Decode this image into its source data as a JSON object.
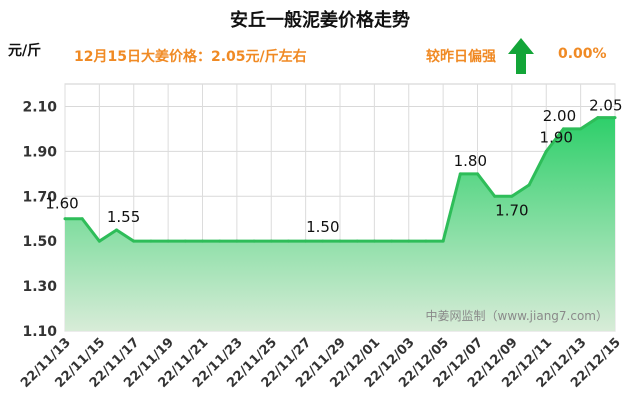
{
  "title": "安丘一般泥姜价格走势",
  "unit_label": "元/斤",
  "price_note": "12月15日大姜价格：2.05元/斤左右",
  "compare_label": "较昨日偏强",
  "change_percent": "0.00%",
  "arrow_icon": "up-arrow-icon",
  "colors": {
    "accent": "#f08a24",
    "line": "#2ebd59",
    "arrow": "#13a538"
  },
  "chart_data": {
    "type": "area",
    "title": "安丘一般泥姜价格走势",
    "ylabel": "元/斤",
    "xlabel": "",
    "ylim": [
      1.1,
      2.2
    ],
    "yticks": [
      "1.10",
      "1.30",
      "1.50",
      "1.70",
      "1.90",
      "2.10"
    ],
    "grid": true,
    "watermark": "中姜网监制（www.jiang7.com）",
    "x": [
      "22/11/13",
      "22/11/14",
      "22/11/15",
      "22/11/16",
      "22/11/17",
      "22/11/18",
      "22/11/19",
      "22/11/20",
      "22/11/21",
      "22/11/22",
      "22/11/23",
      "22/11/24",
      "22/11/25",
      "22/11/26",
      "22/11/27",
      "22/11/28",
      "22/11/29",
      "22/11/30",
      "22/12/01",
      "22/12/02",
      "22/12/03",
      "22/12/04",
      "22/12/05",
      "22/12/06",
      "22/12/07",
      "22/12/08",
      "22/12/09",
      "22/12/10",
      "22/12/11",
      "22/12/12",
      "22/12/13",
      "22/12/14",
      "22/12/15"
    ],
    "xtick_labels": [
      "22/11/13",
      "22/11/15",
      "22/11/17",
      "22/11/19",
      "22/11/21",
      "22/11/23",
      "22/11/25",
      "22/11/27",
      "22/11/29",
      "22/12/01",
      "22/12/03",
      "22/12/05",
      "22/12/07",
      "22/12/09",
      "22/12/11",
      "22/12/13",
      "22/12/15"
    ],
    "values": [
      1.6,
      1.6,
      1.5,
      1.55,
      1.5,
      1.5,
      1.5,
      1.5,
      1.5,
      1.5,
      1.5,
      1.5,
      1.5,
      1.5,
      1.5,
      1.5,
      1.5,
      1.5,
      1.5,
      1.5,
      1.5,
      1.5,
      1.5,
      1.8,
      1.8,
      1.7,
      1.7,
      1.75,
      1.9,
      2.0,
      2.0,
      2.05,
      2.05
    ],
    "data_labels": [
      {
        "index": 0,
        "text": "1.60"
      },
      {
        "index": 3,
        "text": "1.55"
      },
      {
        "index": 15,
        "text": "1.50"
      },
      {
        "index": 23,
        "text": "1.80"
      },
      {
        "index": 26,
        "text": "1.70"
      },
      {
        "index": 28,
        "text": "1.90"
      },
      {
        "index": 29,
        "text": "2.00"
      },
      {
        "index": 31,
        "text": "2.05"
      }
    ]
  }
}
